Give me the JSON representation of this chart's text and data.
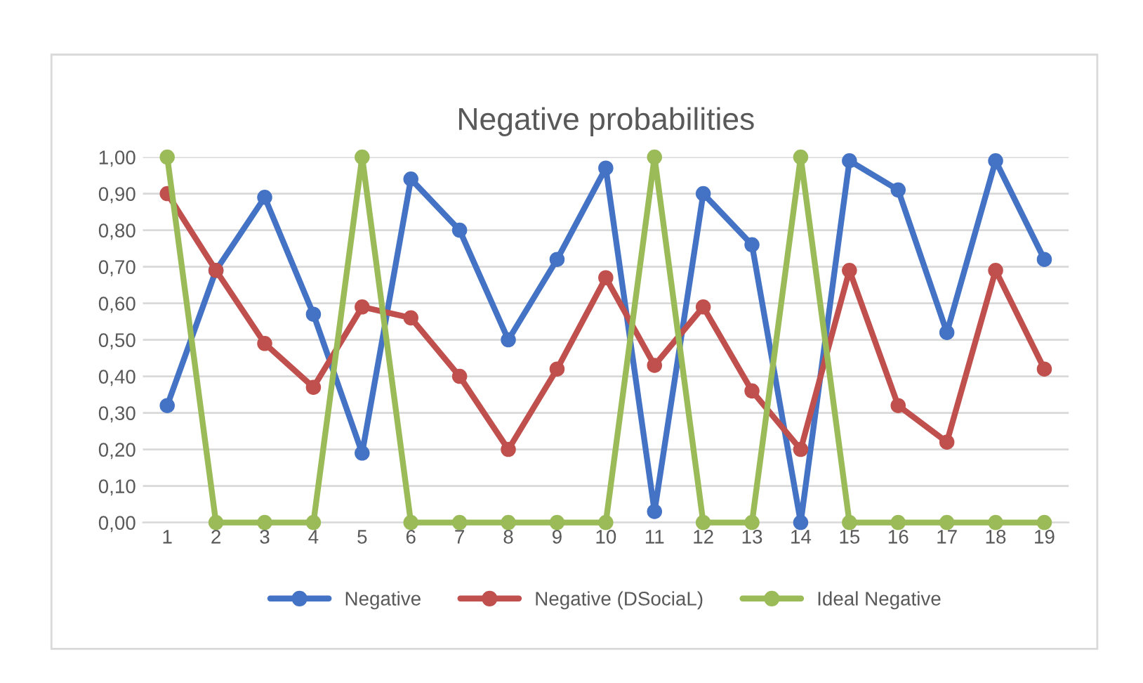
{
  "chart_data": {
    "type": "line",
    "title": "Negative probabilities",
    "categories": [
      "1",
      "2",
      "3",
      "4",
      "5",
      "6",
      "7",
      "8",
      "9",
      "10",
      "11",
      "12",
      "13",
      "14",
      "15",
      "16",
      "17",
      "18",
      "19"
    ],
    "series": [
      {
        "name": "Negative",
        "color": "#4472c4",
        "values": [
          0.32,
          0.69,
          0.89,
          0.57,
          0.19,
          0.94,
          0.8,
          0.5,
          0.72,
          0.97,
          0.03,
          0.9,
          0.76,
          0.0,
          0.99,
          0.91,
          0.52,
          0.99,
          0.72
        ]
      },
      {
        "name": "Negative (DSociaL)",
        "color": "#c0504d",
        "values": [
          0.9,
          0.69,
          0.49,
          0.37,
          0.59,
          0.56,
          0.4,
          0.2,
          0.42,
          0.67,
          0.43,
          0.59,
          0.36,
          0.2,
          0.69,
          0.32,
          0.22,
          0.69,
          0.42
        ]
      },
      {
        "name": "Ideal Negative",
        "color": "#9bbb59",
        "values": [
          1,
          0,
          0,
          0,
          1,
          0,
          0,
          0,
          0,
          0,
          1,
          0,
          0,
          1,
          0,
          0,
          0,
          0,
          0
        ]
      }
    ],
    "ylim": [
      0,
      1.0
    ],
    "yticks": [
      {
        "value": 0,
        "label": "0,00"
      },
      {
        "value": 0.1,
        "label": "0,10"
      },
      {
        "value": 0.2,
        "label": "0,20"
      },
      {
        "value": 0.3,
        "label": "0,30"
      },
      {
        "value": 0.4,
        "label": "0,40"
      },
      {
        "value": 0.5,
        "label": "0,50"
      },
      {
        "value": 0.6,
        "label": "0,60"
      },
      {
        "value": 0.7,
        "label": "0,70"
      },
      {
        "value": 0.8,
        "label": "0,80"
      },
      {
        "value": 0.9,
        "label": "0,90"
      },
      {
        "value": 1.0,
        "label": "1,00"
      }
    ],
    "grid": "y",
    "legend": "bottom",
    "marker": "circle",
    "line_style": "solid"
  }
}
